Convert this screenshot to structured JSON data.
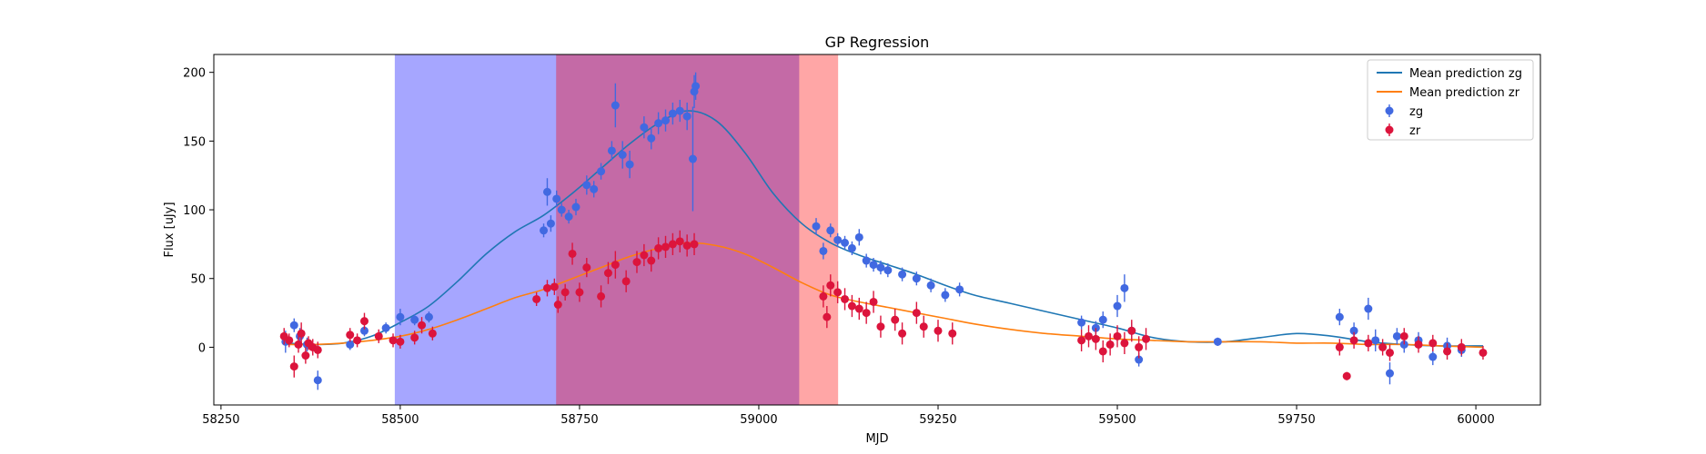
{
  "chart_data": {
    "type": "scatter",
    "title": "GP Regression",
    "xlabel": "MJD",
    "ylabel": "Flux [uJy]",
    "xlim": [
      58240,
      60090
    ],
    "ylim": [
      -42,
      213
    ],
    "grid": false,
    "legend_position": "top-right",
    "x_ticks": [
      58250,
      58500,
      58750,
      59000,
      59250,
      59500,
      59750,
      60000
    ],
    "x_tick_labels": [
      "58250",
      "58500",
      "58750",
      "59000",
      "59250",
      "59500",
      "59750",
      "60000"
    ],
    "y_ticks": [
      0,
      50,
      100,
      150,
      200
    ],
    "y_tick_labels": [
      "0",
      "50",
      "100",
      "150",
      "200"
    ],
    "shaded_regions": [
      {
        "x0": 58493,
        "x1": 58718,
        "color": "#a6a6ff"
      },
      {
        "x0": 58718,
        "x1": 59057,
        "color": "#c46aa6"
      },
      {
        "x0": 59057,
        "x1": 59110,
        "color": "#ffa6a6"
      }
    ],
    "series": [
      {
        "name": "Mean prediction zg",
        "kind": "line",
        "color": "#1f77b4",
        "x": [
          58340,
          58380,
          58420,
          58460,
          58500,
          58540,
          58580,
          58620,
          58660,
          58700,
          58740,
          58780,
          58820,
          58860,
          58900,
          58940,
          58980,
          59020,
          59060,
          59100,
          59140,
          59180,
          59220,
          59260,
          59300,
          59350,
          59400,
          59450,
          59500,
          59550,
          59600,
          59650,
          59700,
          59750,
          59800,
          59850,
          59900,
          59950,
          60010
        ],
        "y": [
          3,
          2,
          3,
          8,
          18,
          30,
          48,
          68,
          84,
          96,
          112,
          130,
          148,
          163,
          172,
          165,
          142,
          112,
          90,
          76,
          67,
          60,
          53,
          45,
          38,
          32,
          26,
          20,
          14,
          7,
          4,
          4,
          7,
          10,
          8,
          4,
          2,
          1,
          1
        ]
      },
      {
        "name": "Mean prediction zr",
        "kind": "line",
        "color": "#ff7f0e",
        "x": [
          58340,
          58380,
          58420,
          58460,
          58500,
          58540,
          58580,
          58620,
          58660,
          58700,
          58740,
          58780,
          58820,
          58860,
          58900,
          58940,
          58980,
          59020,
          59060,
          59100,
          59140,
          59180,
          59220,
          59260,
          59300,
          59350,
          59400,
          59450,
          59500,
          59550,
          59600,
          59650,
          59700,
          59750,
          59800,
          59850,
          59900,
          59950,
          60010
        ],
        "y": [
          2,
          2,
          3,
          5,
          8,
          13,
          20,
          28,
          36,
          42,
          50,
          58,
          66,
          72,
          76,
          74,
          68,
          58,
          47,
          38,
          33,
          29,
          25,
          21,
          17,
          13,
          10,
          8,
          6,
          5,
          4,
          4,
          4,
          3,
          3,
          2,
          2,
          1,
          0
        ]
      },
      {
        "name": "zg",
        "kind": "errorbar",
        "color": "#4169e1",
        "x": [
          58340,
          58352,
          58360,
          58370,
          58385,
          58430,
          58450,
          58480,
          58500,
          58520,
          58540,
          58700,
          58705,
          58710,
          58718,
          58725,
          58735,
          58745,
          58760,
          58770,
          58780,
          58795,
          58800,
          58810,
          58820,
          58840,
          58850,
          58860,
          58870,
          58880,
          58890,
          58900,
          58908,
          58910,
          58912,
          59080,
          59090,
          59100,
          59110,
          59120,
          59130,
          59140,
          59150,
          59160,
          59170,
          59180,
          59200,
          59220,
          59240,
          59260,
          59280,
          59450,
          59470,
          59480,
          59500,
          59510,
          59520,
          59530,
          59640,
          59810,
          59830,
          59850,
          59860,
          59880,
          59890,
          59900,
          59920,
          59940,
          59960,
          59980
        ],
        "y": [
          4,
          16,
          8,
          2,
          -24,
          2,
          12,
          14,
          22,
          20,
          22,
          85,
          113,
          90,
          108,
          100,
          95,
          102,
          118,
          115,
          128,
          143,
          176,
          140,
          133,
          160,
          152,
          163,
          165,
          170,
          172,
          168,
          137,
          186,
          190,
          88,
          70,
          85,
          78,
          76,
          72,
          80,
          63,
          60,
          58,
          56,
          53,
          50,
          45,
          38,
          42,
          18,
          14,
          20,
          30,
          43,
          12,
          -9,
          4,
          22,
          12,
          28,
          5,
          -19,
          8,
          2,
          5,
          -7,
          1,
          -2
        ],
        "err": [
          8,
          5,
          6,
          5,
          7,
          4,
          4,
          4,
          6,
          4,
          4,
          5,
          10,
          6,
          6,
          5,
          5,
          6,
          7,
          6,
          6,
          7,
          16,
          10,
          10,
          8,
          8,
          8,
          8,
          8,
          8,
          10,
          38,
          12,
          10,
          6,
          6,
          5,
          5,
          5,
          5,
          6,
          5,
          5,
          5,
          5,
          5,
          5,
          5,
          5,
          5,
          5,
          5,
          6,
          8,
          10,
          6,
          5,
          3,
          6,
          6,
          8,
          8,
          8,
          6,
          6,
          6,
          6,
          6,
          5
        ]
      },
      {
        "name": "zr",
        "kind": "errorbar",
        "color": "#dc143c",
        "x": [
          58338,
          58345,
          58352,
          58358,
          58362,
          58368,
          58372,
          58378,
          58385,
          58430,
          58440,
          58450,
          58470,
          58490,
          58500,
          58520,
          58530,
          58545,
          58690,
          58705,
          58715,
          58720,
          58730,
          58740,
          58750,
          58760,
          58780,
          58790,
          58800,
          58815,
          58830,
          58840,
          58850,
          58860,
          58870,
          58880,
          58890,
          58900,
          58910,
          59090,
          59095,
          59100,
          59110,
          59120,
          59130,
          59140,
          59150,
          59160,
          59170,
          59190,
          59200,
          59220,
          59230,
          59250,
          59270,
          59450,
          59460,
          59470,
          59480,
          59490,
          59500,
          59510,
          59520,
          59530,
          59540,
          59810,
          59820,
          59830,
          59850,
          59870,
          59880,
          59900,
          59920,
          59940,
          59960,
          59980,
          60010
        ],
        "y": [
          8,
          5,
          -14,
          2,
          10,
          -6,
          3,
          0,
          -2,
          9,
          5,
          19,
          8,
          5,
          4,
          7,
          16,
          10,
          35,
          43,
          44,
          31,
          40,
          68,
          40,
          58,
          37,
          54,
          60,
          48,
          62,
          67,
          63,
          72,
          73,
          75,
          77,
          74,
          75,
          37,
          22,
          45,
          40,
          35,
          30,
          28,
          25,
          33,
          15,
          20,
          10,
          25,
          15,
          12,
          10,
          5,
          8,
          6,
          -3,
          2,
          8,
          3,
          12,
          0,
          6,
          0,
          -21,
          5,
          3,
          0,
          -4,
          8,
          2,
          3,
          -3,
          0,
          -4
        ],
        "err": [
          6,
          5,
          8,
          6,
          8,
          6,
          5,
          6,
          6,
          5,
          5,
          6,
          5,
          5,
          5,
          5,
          6,
          5,
          5,
          6,
          6,
          6,
          6,
          8,
          7,
          7,
          8,
          8,
          10,
          8,
          8,
          8,
          8,
          8,
          8,
          8,
          8,
          8,
          8,
          8,
          8,
          8,
          8,
          8,
          8,
          8,
          8,
          8,
          8,
          8,
          8,
          8,
          8,
          8,
          8,
          8,
          8,
          8,
          8,
          8,
          8,
          8,
          8,
          8,
          8,
          6,
          3,
          6,
          6,
          6,
          6,
          6,
          6,
          6,
          6,
          6,
          5
        ]
      }
    ]
  }
}
